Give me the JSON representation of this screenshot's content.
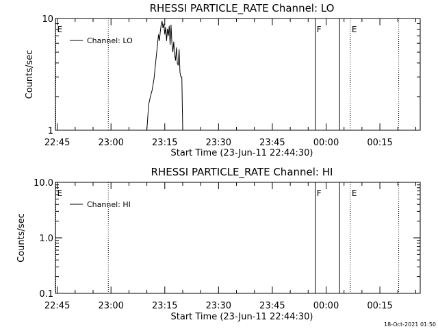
{
  "generated_stamp": "18-Oct-2021 01:50",
  "chart_data": [
    {
      "type": "line",
      "title": "RHESSI PARTICLE_RATE Channel: LO",
      "xlabel": "Start Time (23-Jun-11 22:44:30)",
      "ylabel": "Counts/sec",
      "yscale": "log",
      "ylim": [
        1,
        10
      ],
      "yticks": [
        1,
        10
      ],
      "ytick_labels": [
        "1",
        "10"
      ],
      "xlim": [
        "22:44:30",
        "00:26:15"
      ],
      "xticks": [
        "22:45",
        "23:00",
        "23:15",
        "23:30",
        "23:45",
        "00:00",
        "00:15"
      ],
      "legend_position": "top-left",
      "series": [
        {
          "name": "Channel: LO",
          "x": [
            "23:10:00",
            "23:10:30",
            "23:11:00",
            "23:11:30",
            "23:12:00",
            "23:12:15",
            "23:12:30",
            "23:12:45",
            "23:13:00",
            "23:13:15",
            "23:13:30",
            "23:13:45",
            "23:14:00",
            "23:14:15",
            "23:14:30",
            "23:14:45",
            "23:15:00",
            "23:15:15",
            "23:15:30",
            "23:15:45",
            "23:16:00",
            "23:16:15",
            "23:16:30",
            "23:16:45",
            "23:17:00",
            "23:17:15",
            "23:17:30",
            "23:17:45",
            "23:18:00",
            "23:18:15",
            "23:18:30",
            "23:18:45",
            "23:19:00",
            "23:19:15",
            "23:19:30",
            "23:19:45",
            "23:20:00"
          ],
          "y": [
            1.0,
            1.7,
            2.0,
            2.3,
            2.9,
            3.5,
            4.2,
            5.0,
            6.0,
            7.2,
            6.3,
            7.6,
            8.8,
            9.5,
            8.2,
            9.0,
            7.2,
            8.4,
            6.3,
            8.1,
            7.0,
            8.6,
            5.8,
            8.8,
            6.0,
            5.0,
            6.2,
            4.8,
            4.2,
            5.5,
            4.0,
            3.8,
            5.3,
            3.3,
            3.0,
            3.0,
            1.0
          ]
        }
      ],
      "markers": [
        {
          "label": "E",
          "time": "22:44:30",
          "style": "dotted"
        },
        {
          "time": "22:59:15",
          "style": "dotted"
        },
        {
          "label": "F",
          "time": "23:57:00",
          "style": "solid"
        },
        {
          "time": "00:03:45",
          "style": "solid"
        },
        {
          "label": "E",
          "time": "00:06:45",
          "style": "dotted"
        },
        {
          "time": "00:20:15",
          "style": "dotted"
        }
      ]
    },
    {
      "type": "line",
      "title": "RHESSI PARTICLE_RATE Channel: HI",
      "xlabel": "Start Time (23-Jun-11 22:44:30)",
      "ylabel": "Counts/sec",
      "yscale": "log",
      "ylim": [
        0.1,
        10
      ],
      "yticks": [
        0.1,
        1,
        10
      ],
      "ytick_labels": [
        "0.1",
        "1.0",
        "10.0"
      ],
      "xlim": [
        "22:44:30",
        "00:26:15"
      ],
      "xticks": [
        "22:45",
        "23:00",
        "23:15",
        "23:30",
        "23:45",
        "00:00",
        "00:15"
      ],
      "legend_position": "top-left",
      "series": [
        {
          "name": "Channel: HI",
          "x": [],
          "y": []
        }
      ],
      "markers": [
        {
          "label": "E",
          "time": "22:44:30",
          "style": "dotted"
        },
        {
          "time": "22:59:15",
          "style": "dotted"
        },
        {
          "label": "F",
          "time": "23:57:00",
          "style": "solid"
        },
        {
          "time": "00:03:45",
          "style": "solid"
        },
        {
          "label": "E",
          "time": "00:06:45",
          "style": "dotted"
        },
        {
          "time": "00:20:15",
          "style": "dotted"
        }
      ]
    }
  ]
}
